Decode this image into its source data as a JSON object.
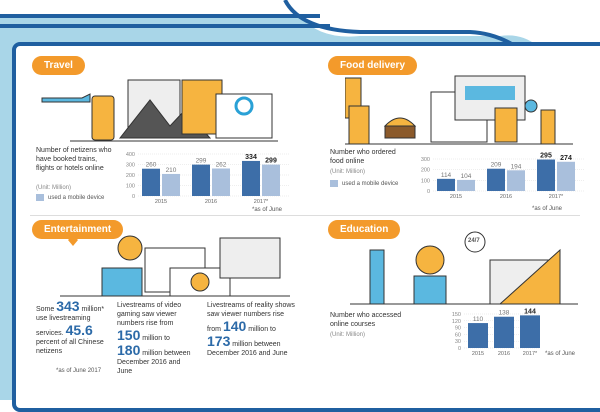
{
  "colors": {
    "frame": "#1f5fa0",
    "background": "#a9d6e8",
    "accent": "#f39a2b",
    "bar_total": "#3d6ea8",
    "bar_mobile": "#a9bfdc"
  },
  "travel": {
    "label": "Travel",
    "desc": "Number of netizens who have booked trains, flights or hotels online",
    "unit": "(Unit: Million)",
    "legend": "used a mobile device",
    "note": "*as of June"
  },
  "food": {
    "label": "Food delivery",
    "desc": "Number who ordered food online",
    "unit": "(Unit: Million)",
    "legend": "used a mobile device",
    "note": "*as of June"
  },
  "entertainment": {
    "label": "Entertainment",
    "col1": {
      "a": "Some ",
      "n1": "343",
      "b": " million* use livestreaming services. ",
      "n2": "45.6",
      "c": " percent of all Chinese netizens",
      "note": "*as of June 2017"
    },
    "col2": {
      "a": "Livestreams of video gaming saw viewer numbers rise from ",
      "n1": "150",
      "b": " million to ",
      "n2": "180",
      "c": " million between December 2016 and June"
    },
    "col3": {
      "a": "Livestreams of reality shows saw viewer numbers rise from ",
      "n1": "140",
      "b": " million to ",
      "n2": "173",
      "c": " million between December 2016 and June"
    }
  },
  "education": {
    "label": "Education",
    "desc": "Number who accessed online courses",
    "unit": "(Unit: Million)",
    "note": "*as of June",
    "badge": "24/7"
  },
  "chart_data": [
    {
      "type": "bar",
      "id": "travel",
      "categories": [
        "2015",
        "2016",
        "2017*"
      ],
      "ylim": [
        0,
        400
      ],
      "yticks": [
        "0",
        "100",
        "200",
        "300",
        "400"
      ],
      "series": [
        {
          "values": [
            260,
            299,
            334
          ]
        },
        {
          "name": "used a mobile device",
          "values": [
            210,
            262,
            299
          ]
        }
      ]
    },
    {
      "type": "bar",
      "id": "food",
      "categories": [
        "2015",
        "2016",
        "2017*"
      ],
      "ylim": [
        0,
        300
      ],
      "yticks": [
        "0",
        "100",
        "200",
        "300"
      ],
      "series": [
        {
          "values": [
            114,
            209,
            295
          ]
        },
        {
          "name": "used a mobile device",
          "values": [
            104,
            194,
            274
          ]
        }
      ]
    },
    {
      "type": "bar",
      "id": "education",
      "categories": [
        "2015",
        "2016",
        "2017*"
      ],
      "ylim": [
        0,
        150
      ],
      "yticks": [
        "0",
        "30",
        "60",
        "90",
        "120",
        "150"
      ],
      "series": [
        {
          "values": [
            110,
            138,
            144
          ]
        }
      ]
    }
  ]
}
